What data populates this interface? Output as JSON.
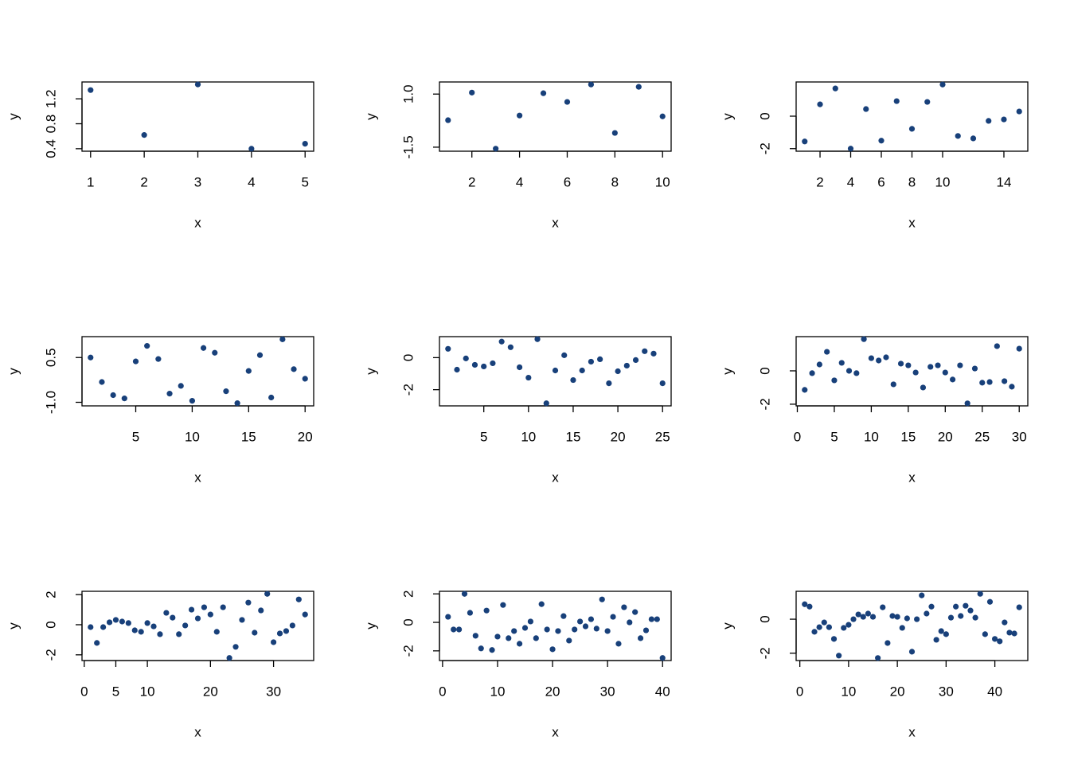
{
  "chart_data": [
    {
      "type": "scatter",
      "xlabel": "x",
      "ylabel": "y",
      "color": "#18407a",
      "x": [
        1,
        2,
        3,
        4,
        5
      ],
      "values": [
        1.34,
        0.62,
        1.43,
        0.4,
        0.48
      ],
      "xlim": [
        0.84,
        5.16
      ],
      "ylim": [
        0.36,
        1.47
      ],
      "xticks": [
        1,
        2,
        3,
        4,
        5
      ],
      "yticks": [
        0.4,
        0.8,
        1.2
      ]
    },
    {
      "type": "scatter",
      "xlabel": "x",
      "ylabel": "y",
      "color": "#18407a",
      "x": [
        1,
        2,
        3,
        4,
        5,
        6,
        7,
        8,
        9,
        10
      ],
      "values": [
        -0.23,
        1.07,
        -1.57,
        -0.01,
        1.04,
        0.63,
        1.45,
        -0.83,
        1.34,
        -0.05
      ],
      "xlim": [
        0.64,
        10.36
      ],
      "ylim": [
        -1.69,
        1.57
      ],
      "xticks": [
        2,
        4,
        6,
        8,
        10
      ],
      "yticks": [
        -1.5,
        {
          "value": 1,
          "label": "1.0"
        }
      ]
    },
    {
      "type": "scatter",
      "xlabel": "x",
      "ylabel": "y",
      "color": "#18407a",
      "x": [
        1,
        2,
        3,
        4,
        5,
        6,
        7,
        8,
        9,
        10,
        11,
        12,
        13,
        14,
        15
      ],
      "values": [
        -1.56,
        0.73,
        1.71,
        -2.0,
        0.44,
        -1.51,
        0.93,
        -0.78,
        0.88,
        1.95,
        -1.22,
        -1.37,
        -0.29,
        -0.2,
        0.29
      ],
      "xlim": [
        0.44,
        15.56
      ],
      "ylim": [
        -2.16,
        2.11
      ],
      "xticks": [
        2,
        4,
        6,
        8,
        10,
        14
      ],
      "yticks": [
        -2,
        0
      ]
    },
    {
      "type": "scatter",
      "xlabel": "x",
      "ylabel": "y",
      "color": "#18407a",
      "x": [
        1,
        2,
        3,
        4,
        5,
        6,
        7,
        8,
        9,
        10,
        11,
        12,
        13,
        14,
        15,
        16,
        17,
        18,
        19,
        20
      ],
      "values": [
        0.5,
        -0.32,
        -0.76,
        -0.87,
        0.37,
        0.89,
        0.45,
        -0.71,
        -0.45,
        -0.95,
        0.82,
        0.66,
        -0.63,
        -1.03,
        0.05,
        0.58,
        -0.84,
        1.11,
        0.11,
        -0.21
      ],
      "xlim": [
        0.24,
        20.76
      ],
      "ylim": [
        -1.12,
        1.2
      ],
      "xticks": [
        5,
        10,
        15,
        20
      ],
      "yticks": [
        {
          "value": -1,
          "label": "-1.0"
        },
        0.5
      ]
    },
    {
      "type": "scatter",
      "xlabel": "x",
      "ylabel": "y",
      "color": "#18407a",
      "x": [
        1,
        2,
        3,
        4,
        5,
        6,
        7,
        8,
        9,
        10,
        11,
        12,
        13,
        14,
        15,
        16,
        17,
        18,
        19,
        20,
        21,
        22,
        23,
        24,
        25
      ],
      "values": [
        0.55,
        -0.75,
        -0.05,
        -0.45,
        -0.55,
        -0.35,
        1.0,
        0.65,
        -0.6,
        -1.25,
        1.15,
        -2.85,
        -0.8,
        0.15,
        -1.4,
        -0.8,
        -0.25,
        -0.1,
        -1.6,
        -0.85,
        -0.5,
        -0.15,
        0.4,
        0.25,
        -1.6
      ],
      "xlim": [
        0.04,
        25.96
      ],
      "ylim": [
        -3.01,
        1.31
      ],
      "xticks": [
        5,
        10,
        15,
        20,
        25
      ],
      "yticks": [
        -2,
        0
      ]
    },
    {
      "type": "scatter",
      "xlabel": "x",
      "ylabel": "y",
      "color": "#18407a",
      "x": [
        1,
        2,
        3,
        4,
        5,
        6,
        7,
        8,
        9,
        10,
        11,
        12,
        13,
        14,
        15,
        16,
        17,
        18,
        19,
        20,
        21,
        22,
        23,
        24,
        25,
        26,
        27,
        28,
        29,
        30
      ],
      "values": [
        -1.14,
        -0.14,
        0.38,
        1.14,
        -0.57,
        0.48,
        0,
        -0.14,
        1.9,
        0.76,
        0.62,
        0.81,
        -0.81,
        0.43,
        0.33,
        -0.1,
        -1.0,
        0.24,
        0.33,
        -0.1,
        -0.52,
        0.33,
        -1.95,
        0.14,
        -0.71,
        -0.67,
        1.48,
        -0.62,
        -0.95,
        1.33
      ],
      "xlim": [
        -0.16,
        31.16
      ],
      "ylim": [
        -2.1,
        2.05
      ],
      "xticks": [
        0,
        5,
        10,
        15,
        20,
        25,
        30
      ],
      "yticks": [
        -2,
        0
      ]
    },
    {
      "type": "scatter",
      "xlabel": "x",
      "ylabel": "y",
      "color": "#18407a",
      "x": [
        1,
        2,
        3,
        4,
        5,
        6,
        7,
        8,
        9,
        10,
        11,
        12,
        13,
        14,
        15,
        16,
        17,
        18,
        19,
        20,
        21,
        22,
        23,
        24,
        25,
        26,
        27,
        28,
        29,
        30,
        31,
        32,
        33,
        34,
        35
      ],
      "values": [
        -0.16,
        -1.21,
        -0.16,
        0.16,
        0.32,
        0.21,
        0.11,
        -0.37,
        -0.47,
        0.11,
        -0.11,
        -0.63,
        0.79,
        0.47,
        -0.63,
        -0.05,
        1.0,
        0.42,
        1.16,
        0.68,
        -0.47,
        1.16,
        -2.21,
        -1.47,
        0.32,
        1.47,
        -0.53,
        0.95,
        2.05,
        -1.16,
        -0.58,
        -0.42,
        -0.05,
        1.68,
        0.68
      ],
      "xlim": [
        -0.36,
        36.36
      ],
      "ylim": [
        -2.38,
        2.22
      ],
      "xticks": [
        0,
        5,
        10,
        20,
        30
      ],
      "yticks": [
        -2,
        0,
        2
      ]
    },
    {
      "type": "scatter",
      "xlabel": "x",
      "ylabel": "y",
      "color": "#18407a",
      "x": [
        1,
        2,
        3,
        4,
        5,
        6,
        7,
        8,
        9,
        10,
        11,
        12,
        13,
        14,
        15,
        16,
        17,
        18,
        19,
        20,
        21,
        22,
        23,
        24,
        25,
        26,
        27,
        28,
        29,
        30,
        31,
        32,
        33,
        34,
        35,
        36,
        37,
        38,
        39,
        40
      ],
      "values": [
        0.39,
        -0.5,
        -0.5,
        2.0,
        0.67,
        -0.94,
        -1.83,
        0.83,
        -1.94,
        -1.0,
        1.22,
        -1.11,
        -0.61,
        -1.5,
        -0.39,
        0.06,
        -1.11,
        1.28,
        -0.5,
        -1.89,
        -0.61,
        0.44,
        -1.28,
        -0.5,
        0.06,
        -0.28,
        0.22,
        -0.44,
        1.61,
        -0.61,
        0.39,
        -1.5,
        1.06,
        0,
        0.72,
        -1.11,
        -0.56,
        0.22,
        0.22,
        -2.5
      ],
      "xlim": [
        -0.56,
        41.56
      ],
      "ylim": [
        -2.68,
        2.18
      ],
      "xticks": [
        0,
        10,
        20,
        30,
        40
      ],
      "yticks": [
        -2,
        0,
        2
      ]
    },
    {
      "type": "scatter",
      "xlabel": "x",
      "ylabel": "y",
      "color": "#18407a",
      "x": [
        1,
        2,
        3,
        4,
        5,
        6,
        7,
        8,
        9,
        10,
        11,
        12,
        13,
        14,
        15,
        16,
        17,
        18,
        19,
        20,
        21,
        22,
        23,
        24,
        25,
        26,
        27,
        28,
        29,
        30,
        31,
        32,
        33,
        34,
        35,
        36,
        37,
        38,
        39,
        40,
        41,
        42,
        43,
        44,
        45
      ],
      "values": [
        0.88,
        0.74,
        -0.74,
        -0.47,
        -0.19,
        -0.47,
        -1.16,
        -2.14,
        -0.51,
        -0.33,
        0,
        0.28,
        0.14,
        0.33,
        0.14,
        -2.28,
        0.7,
        -1.4,
        0.19,
        0.14,
        -0.51,
        0.05,
        -1.91,
        0,
        1.4,
        0.33,
        0.74,
        -1.21,
        -0.7,
        -0.88,
        0.09,
        0.74,
        0.19,
        0.79,
        0.51,
        0.09,
        1.49,
        -0.88,
        1.02,
        -1.16,
        -1.3,
        -0.19,
        -0.79,
        -0.84,
        0.7
      ],
      "xlim": [
        -0.76,
        46.76
      ],
      "ylim": [
        -2.43,
        1.64
      ],
      "xticks": [
        0,
        10,
        20,
        30,
        40
      ],
      "yticks": [
        -2,
        0
      ]
    }
  ]
}
